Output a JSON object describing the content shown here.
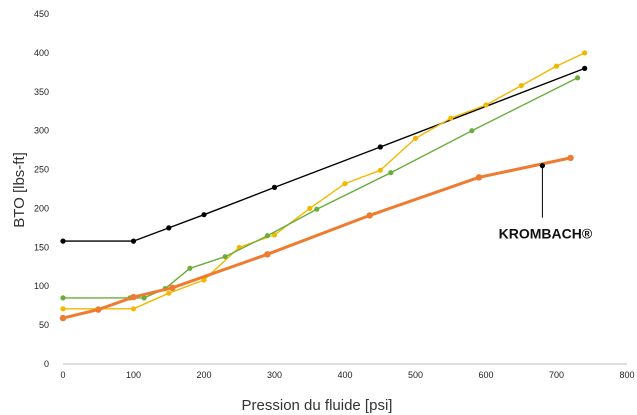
{
  "chart_data": {
    "type": "line",
    "title": "",
    "xlabel": "Pression du fluide [psi]",
    "ylabel": "BTO [lbs-ft]",
    "xlim": [
      0,
      800
    ],
    "ylim": [
      0,
      450
    ],
    "xticks": [
      0,
      100,
      200,
      300,
      400,
      500,
      600,
      700,
      800
    ],
    "yticks": [
      0,
      50,
      100,
      150,
      200,
      250,
      300,
      350,
      400,
      450
    ],
    "grid": false,
    "legend": "none",
    "series": [
      {
        "color": "#000000",
        "points": [
          [
            0,
            158
          ],
          [
            100,
            158
          ],
          [
            150,
            175
          ],
          [
            200,
            192
          ],
          [
            300,
            227
          ],
          [
            450,
            279
          ],
          [
            740,
            380
          ]
        ]
      },
      {
        "color": "#f2b800",
        "points": [
          [
            0,
            71
          ],
          [
            50,
            71
          ],
          [
            100,
            71
          ],
          [
            150,
            91
          ],
          [
            200,
            108
          ],
          [
            250,
            150
          ],
          [
            300,
            166
          ],
          [
            350,
            200
          ],
          [
            400,
            232
          ],
          [
            450,
            249
          ],
          [
            500,
            290
          ],
          [
            550,
            316
          ],
          [
            600,
            333
          ],
          [
            650,
            358
          ],
          [
            700,
            383
          ],
          [
            740,
            400
          ]
        ]
      },
      {
        "color": "#6aad3d",
        "points": [
          [
            0,
            85
          ],
          [
            95,
            85
          ],
          [
            115,
            85
          ],
          [
            145,
            97
          ],
          [
            180,
            123
          ],
          [
            230,
            138
          ],
          [
            290,
            165
          ],
          [
            360,
            199
          ],
          [
            465,
            246
          ],
          [
            580,
            300
          ],
          [
            730,
            368
          ]
        ]
      },
      {
        "name": "KROMBACH®",
        "color": "#ee7b30",
        "points": [
          [
            0,
            59
          ],
          [
            50,
            70
          ],
          [
            100,
            86
          ],
          [
            155,
            98
          ],
          [
            290,
            141
          ],
          [
            435,
            191
          ],
          [
            590,
            240
          ],
          [
            720,
            265
          ]
        ]
      }
    ],
    "annotations": [
      {
        "text": "KROMBACH®",
        "target": [
          680,
          255
        ]
      }
    ]
  }
}
